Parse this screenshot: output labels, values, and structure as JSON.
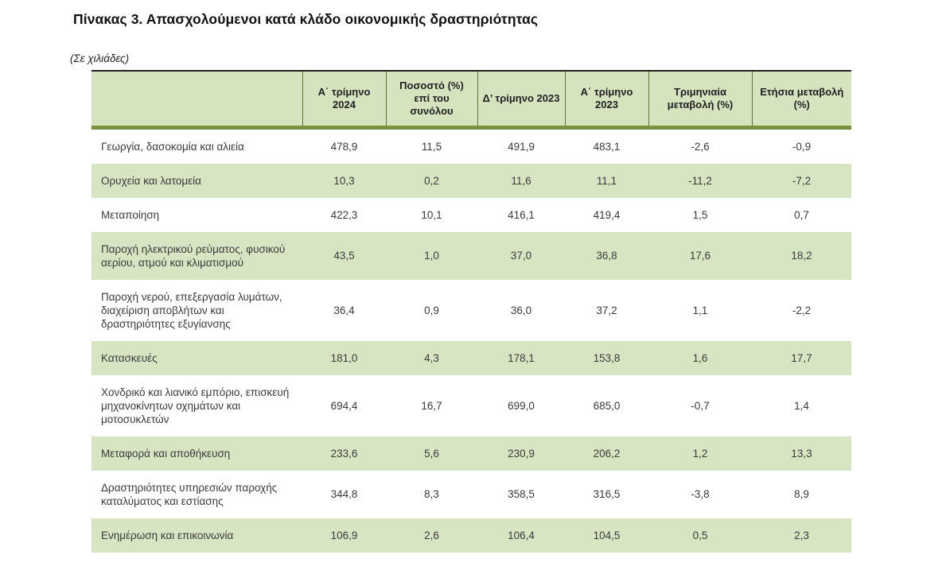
{
  "page": {
    "title": "Πίνακας 3. Απασχολούμενοι κατά κλάδο οικονομικής δραστηριότητας",
    "units_note": "(Σε χιλιάδες)"
  },
  "colors": {
    "header_bg": "#d6e3bf",
    "stripe_bg": "#d8e5c3",
    "accent_border": "#76923c",
    "header_separator": "#5f7435",
    "top_border": "#1f1f1f",
    "text": "#3a3a3a"
  },
  "table": {
    "columns": [
      "",
      "Α΄ τρίμηνο 2024",
      "Ποσοστό (%) επί του συνόλου",
      "Δ’ τρίμηνο 2023",
      "Α΄ τρίμηνο 2023",
      "Τριμηνιαία μεταβολή (%)",
      "Ετήσια μεταβολή (%)"
    ],
    "rows": [
      {
        "label": "Γεωργία, δασοκομία και αλιεία",
        "values": [
          "478,9",
          "11,5",
          "491,9",
          "483,1",
          "-2,6",
          "-0,9"
        ]
      },
      {
        "label": "Ορυχεία και λατομεία",
        "values": [
          "10,3",
          "0,2",
          "11,6",
          "11,1",
          "-11,2",
          "-7,2"
        ]
      },
      {
        "label": "Μεταποίηση",
        "values": [
          "422,3",
          "10,1",
          "416,1",
          "419,4",
          "1,5",
          "0,7"
        ]
      },
      {
        "label": "Παροχή ηλεκτρικού ρεύματος, φυσικού αερίου, ατμού και κλιματισμού",
        "values": [
          "43,5",
          "1,0",
          "37,0",
          "36,8",
          "17,6",
          "18,2"
        ]
      },
      {
        "label": "Παροχή νερού, επεξεργασία λυμάτων, διαχείριση αποβλήτων και δραστηριότητες εξυγίανσης",
        "values": [
          "36,4",
          "0,9",
          "36,0",
          "37,2",
          "1,1",
          "-2,2"
        ]
      },
      {
        "label": "Κατασκευές",
        "values": [
          "181,0",
          "4,3",
          "178,1",
          "153,8",
          "1,6",
          "17,7"
        ]
      },
      {
        "label": "Χονδρικό και λιανικό εμπόριο, επισκευή μηχανοκίνητων οχημάτων και μοτοσυκλετών",
        "values": [
          "694,4",
          "16,7",
          "699,0",
          "685,0",
          "-0,7",
          "1,4"
        ]
      },
      {
        "label": "Μεταφορά και αποθήκευση",
        "values": [
          "233,6",
          "5,6",
          "230,9",
          "206,2",
          "1,2",
          "13,3"
        ]
      },
      {
        "label": "Δραστηριότητες υπηρεσιών παροχής καταλύματος και εστίασης",
        "values": [
          "344,8",
          "8,3",
          "358,5",
          "316,5",
          "-3,8",
          "8,9"
        ]
      },
      {
        "label": "Ενημέρωση και επικοινωνία",
        "values": [
          "106,9",
          "2,6",
          "106,4",
          "104,5",
          "0,5",
          "2,3"
        ]
      }
    ]
  }
}
